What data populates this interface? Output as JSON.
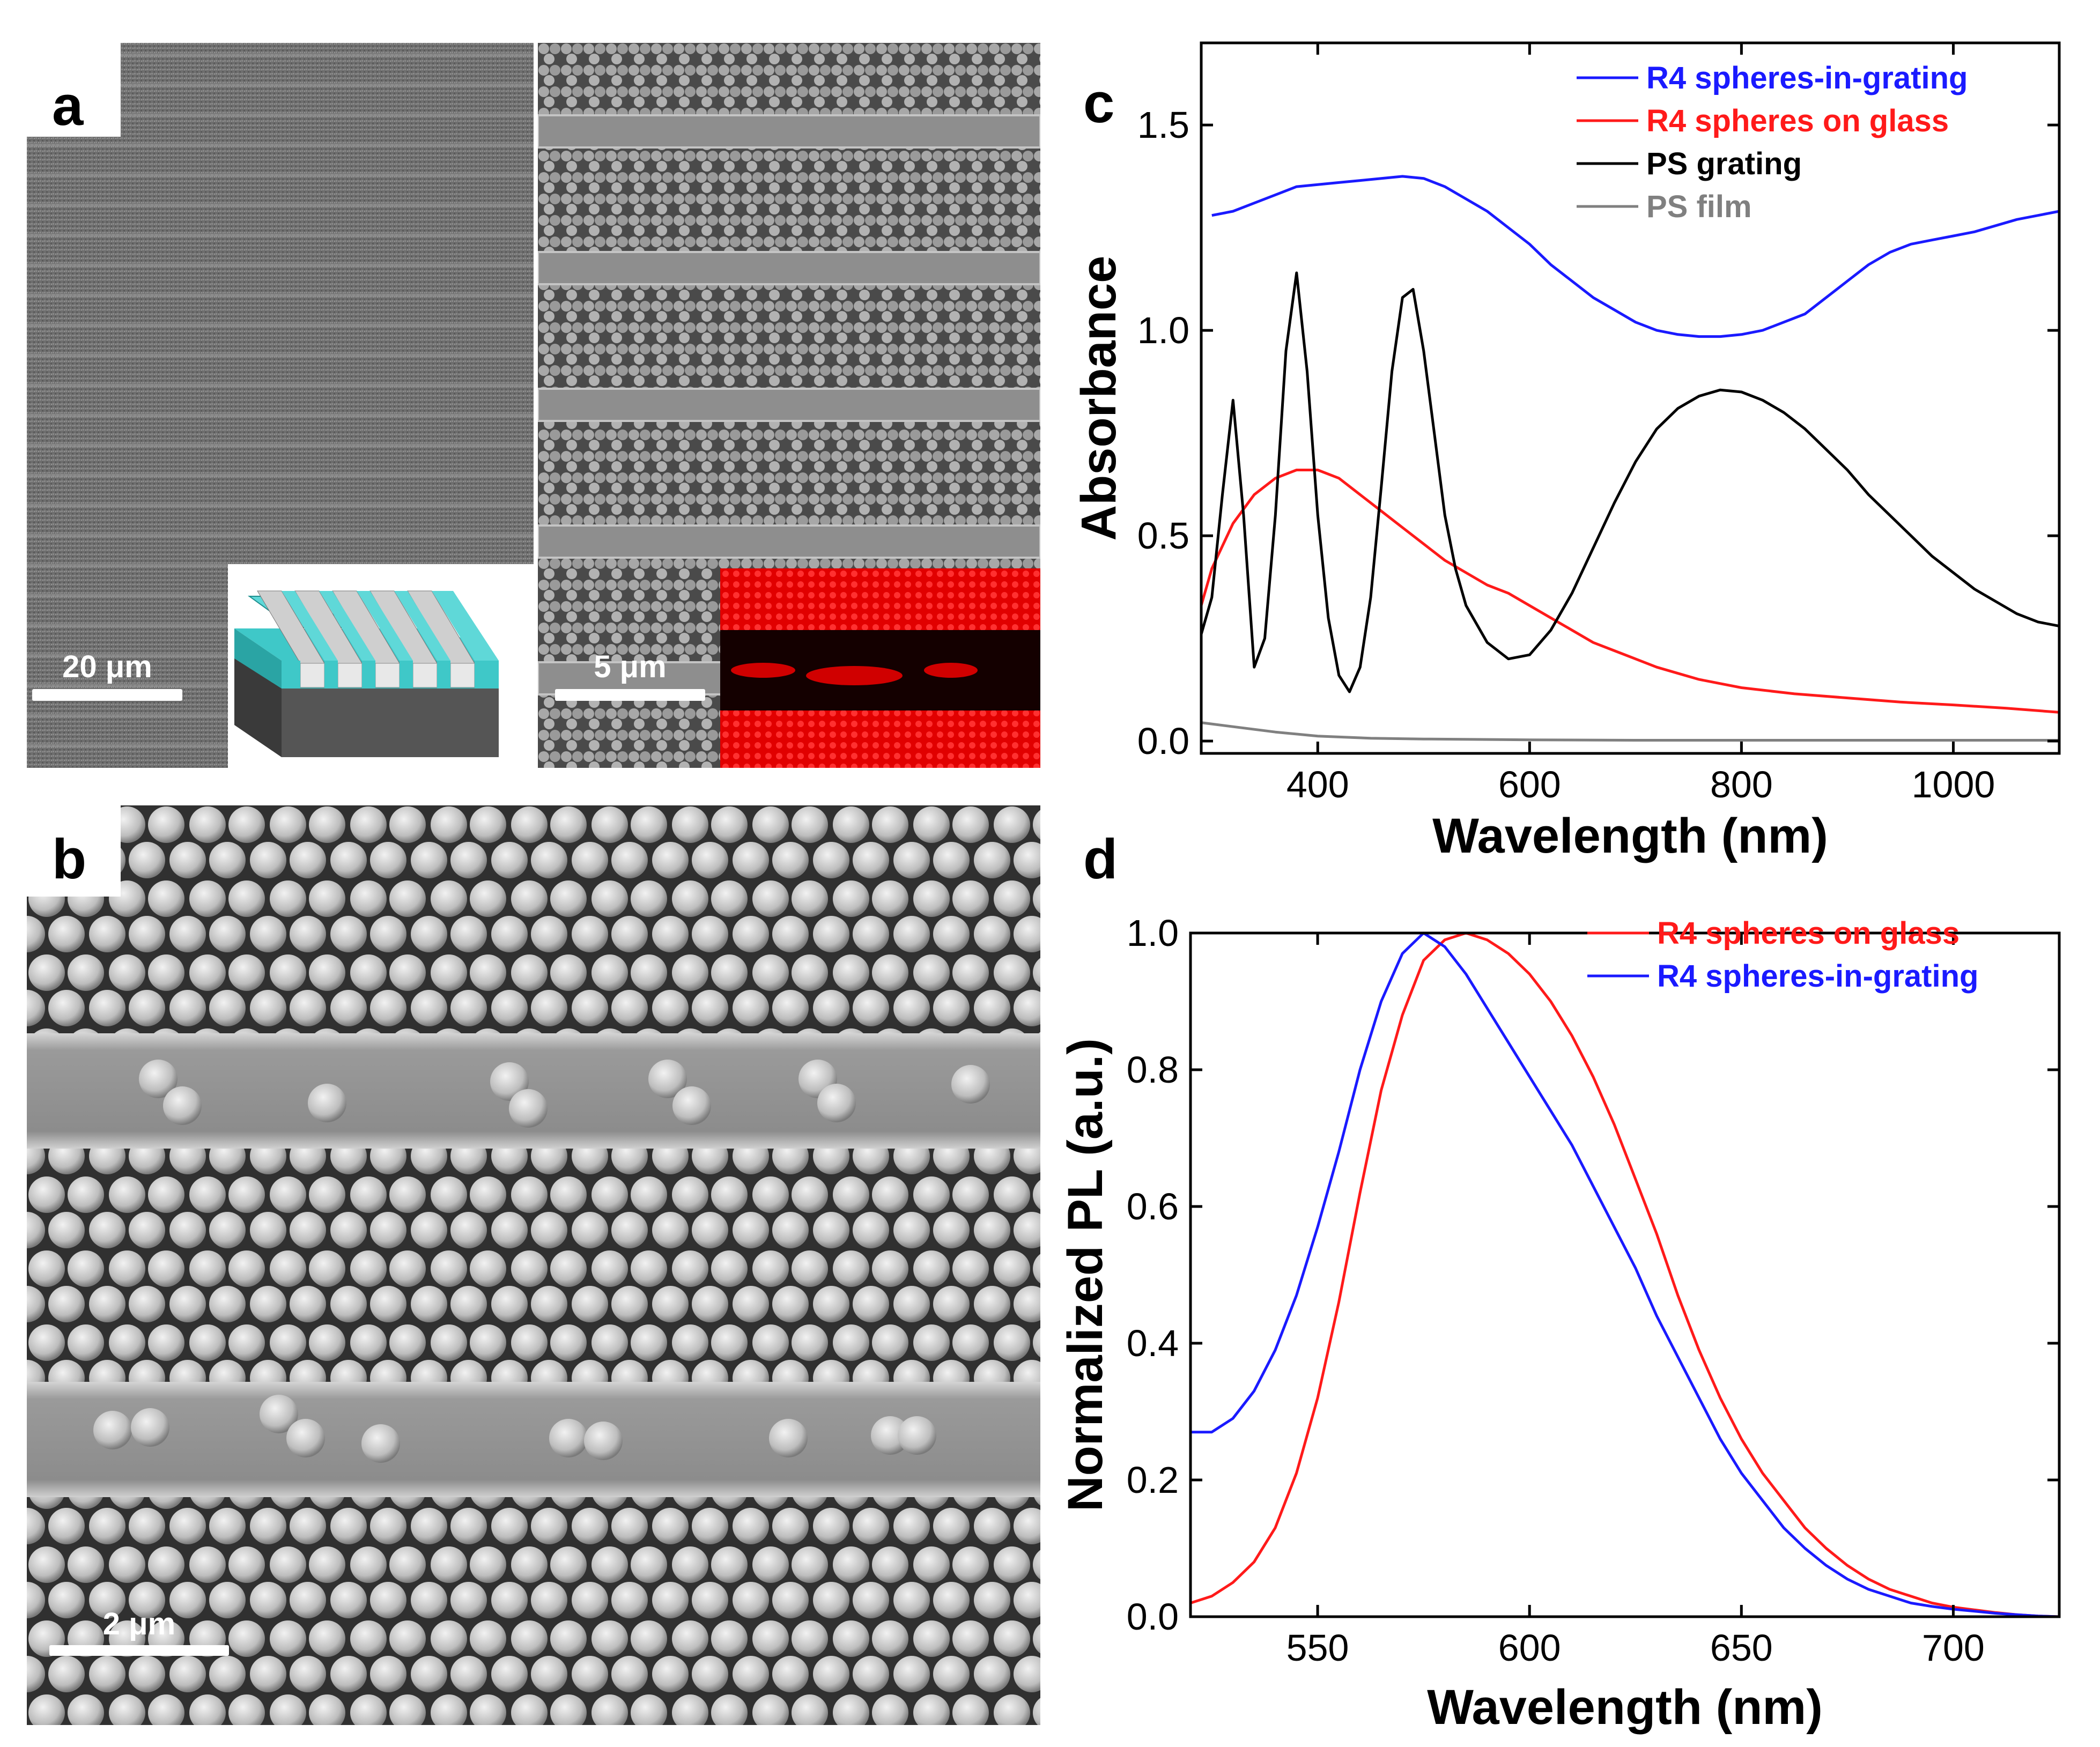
{
  "panels": {
    "a": {
      "label": "a",
      "left_scalebar": "20 μm",
      "right_scalebar": "5 μm",
      "inset_description_icon": "grating-schematic-icon",
      "fluorescence_icon": "fluorescence-map-icon"
    },
    "b": {
      "label": "b",
      "scalebar": "2 μm"
    },
    "c": {
      "label": "c"
    },
    "d": {
      "label": "d"
    }
  },
  "colors": {
    "blue": "#1a1aff",
    "red": "#ff1a1a",
    "black": "#000000",
    "gray": "#808080"
  },
  "chart_data": [
    {
      "id": "c",
      "type": "line",
      "xlabel": "Wavelength (nm)",
      "ylabel": "Absorbance",
      "xlim": [
        290,
        1100
      ],
      "ylim": [
        -0.03,
        1.7
      ],
      "xticks": [
        400,
        600,
        800,
        1000
      ],
      "yticks": [
        0.0,
        0.5,
        1.0,
        1.5
      ],
      "xtick_labels": [
        "400",
        "600",
        "800",
        "1000"
      ],
      "ytick_labels": [
        "0.0",
        "0.5",
        "1.0",
        "1.5"
      ],
      "legend": "top-right",
      "series": [
        {
          "name": "R4 spheres-in-grating",
          "color": "#1a1aff",
          "x": [
            300,
            320,
            340,
            360,
            380,
            400,
            420,
            440,
            460,
            480,
            500,
            520,
            540,
            560,
            580,
            600,
            620,
            640,
            660,
            680,
            700,
            720,
            740,
            760,
            780,
            800,
            820,
            840,
            860,
            880,
            900,
            920,
            940,
            960,
            980,
            1000,
            1020,
            1040,
            1060,
            1080,
            1100
          ],
          "y": [
            1.28,
            1.29,
            1.31,
            1.33,
            1.35,
            1.355,
            1.36,
            1.365,
            1.37,
            1.375,
            1.37,
            1.35,
            1.32,
            1.29,
            1.25,
            1.21,
            1.16,
            1.12,
            1.08,
            1.05,
            1.02,
            1.0,
            0.99,
            0.985,
            0.985,
            0.99,
            1.0,
            1.02,
            1.04,
            1.08,
            1.12,
            1.16,
            1.19,
            1.21,
            1.22,
            1.23,
            1.24,
            1.255,
            1.27,
            1.28,
            1.29
          ]
        },
        {
          "name": "R4 spheres on glass",
          "color": "#ff1a1a",
          "x": [
            290,
            300,
            320,
            340,
            360,
            380,
            400,
            420,
            440,
            460,
            480,
            500,
            520,
            540,
            560,
            580,
            600,
            620,
            640,
            660,
            680,
            700,
            720,
            740,
            760,
            780,
            800,
            850,
            900,
            950,
            1000,
            1050,
            1100
          ],
          "y": [
            0.33,
            0.42,
            0.53,
            0.6,
            0.64,
            0.66,
            0.66,
            0.64,
            0.6,
            0.56,
            0.52,
            0.48,
            0.44,
            0.41,
            0.38,
            0.36,
            0.33,
            0.3,
            0.27,
            0.24,
            0.22,
            0.2,
            0.18,
            0.165,
            0.15,
            0.14,
            0.13,
            0.115,
            0.105,
            0.095,
            0.088,
            0.08,
            0.07
          ]
        },
        {
          "name": "PS grating",
          "color": "#000000",
          "x": [
            290,
            300,
            310,
            320,
            330,
            340,
            350,
            360,
            370,
            380,
            390,
            400,
            410,
            420,
            430,
            440,
            450,
            460,
            470,
            480,
            490,
            500,
            510,
            520,
            530,
            540,
            560,
            580,
            600,
            620,
            640,
            660,
            680,
            700,
            720,
            740,
            760,
            780,
            800,
            820,
            840,
            860,
            880,
            900,
            920,
            940,
            960,
            980,
            1000,
            1020,
            1040,
            1060,
            1080,
            1100
          ],
          "y": [
            0.26,
            0.35,
            0.6,
            0.83,
            0.55,
            0.18,
            0.25,
            0.55,
            0.95,
            1.14,
            0.9,
            0.55,
            0.3,
            0.16,
            0.12,
            0.18,
            0.35,
            0.62,
            0.9,
            1.08,
            1.1,
            0.95,
            0.75,
            0.55,
            0.42,
            0.33,
            0.24,
            0.2,
            0.21,
            0.27,
            0.36,
            0.47,
            0.58,
            0.68,
            0.76,
            0.81,
            0.84,
            0.855,
            0.85,
            0.83,
            0.8,
            0.76,
            0.71,
            0.66,
            0.6,
            0.55,
            0.5,
            0.45,
            0.41,
            0.37,
            0.34,
            0.31,
            0.29,
            0.28
          ]
        },
        {
          "name": "PS film",
          "color": "#808080",
          "x": [
            290,
            320,
            360,
            400,
            450,
            500,
            600,
            700,
            800,
            900,
            1000,
            1100
          ],
          "y": [
            0.045,
            0.035,
            0.022,
            0.012,
            0.007,
            0.005,
            0.003,
            0.002,
            0.002,
            0.002,
            0.002,
            0.002
          ]
        }
      ]
    },
    {
      "id": "d",
      "type": "line",
      "xlabel": "Wavelength (nm)",
      "ylabel": "Normalized PL (a.u.)",
      "xlim": [
        520,
        725
      ],
      "ylim": [
        0,
        1.0
      ],
      "xticks": [
        550,
        600,
        650,
        700
      ],
      "yticks": [
        0.0,
        0.2,
        0.4,
        0.6,
        0.8,
        1.0
      ],
      "xtick_labels": [
        "550",
        "600",
        "650",
        "700"
      ],
      "ytick_labels": [
        "0.0",
        "0.2",
        "0.4",
        "0.6",
        "0.8",
        "1.0"
      ],
      "legend": "top-right",
      "series": [
        {
          "name": "R4 spheres on glass",
          "color": "#ff1a1a",
          "x": [
            520,
            525,
            530,
            535,
            540,
            545,
            550,
            555,
            560,
            565,
            570,
            575,
            580,
            585,
            590,
            595,
            600,
            605,
            610,
            615,
            620,
            625,
            630,
            635,
            640,
            645,
            650,
            655,
            660,
            665,
            670,
            675,
            680,
            685,
            690,
            695,
            700,
            705,
            710,
            715,
            720,
            725
          ],
          "y": [
            0.02,
            0.03,
            0.05,
            0.08,
            0.13,
            0.21,
            0.32,
            0.46,
            0.62,
            0.77,
            0.88,
            0.96,
            0.99,
            1.0,
            0.99,
            0.97,
            0.94,
            0.9,
            0.85,
            0.79,
            0.72,
            0.64,
            0.56,
            0.47,
            0.39,
            0.32,
            0.26,
            0.21,
            0.17,
            0.13,
            0.1,
            0.075,
            0.055,
            0.04,
            0.03,
            0.02,
            0.014,
            0.01,
            0.006,
            0.003,
            0.001,
            0.0
          ]
        },
        {
          "name": "R4 spheres-in-grating",
          "color": "#1a1aff",
          "x": [
            520,
            525,
            530,
            535,
            540,
            545,
            550,
            555,
            560,
            565,
            570,
            575,
            580,
            585,
            590,
            595,
            600,
            605,
            610,
            615,
            620,
            625,
            630,
            635,
            640,
            645,
            650,
            655,
            660,
            665,
            670,
            675,
            680,
            685,
            690,
            695,
            700,
            705,
            710,
            715,
            720,
            725
          ],
          "y": [
            0.27,
            0.27,
            0.29,
            0.33,
            0.39,
            0.47,
            0.57,
            0.68,
            0.8,
            0.9,
            0.97,
            1.0,
            0.98,
            0.94,
            0.89,
            0.84,
            0.79,
            0.74,
            0.69,
            0.63,
            0.57,
            0.51,
            0.44,
            0.38,
            0.32,
            0.26,
            0.21,
            0.17,
            0.13,
            0.1,
            0.075,
            0.055,
            0.04,
            0.03,
            0.02,
            0.015,
            0.011,
            0.008,
            0.005,
            0.003,
            0.001,
            0.0
          ]
        }
      ]
    }
  ]
}
